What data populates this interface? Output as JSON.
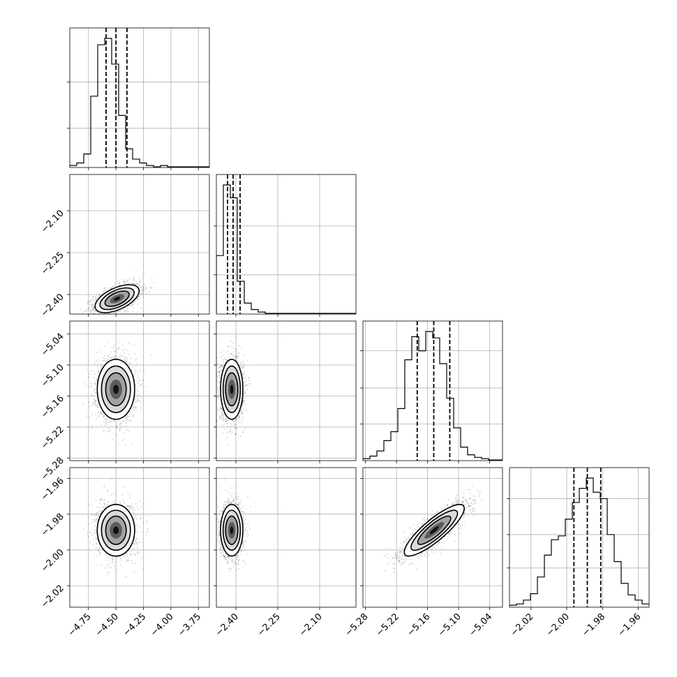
{
  "chart_data": {
    "type": "corner",
    "parameters": [
      {
        "range": [
          -4.92,
          -3.65
        ],
        "ticks": [
          -4.75,
          -4.5,
          -4.25,
          -4.0,
          -3.75
        ],
        "tick_labels": [
          "−4.75",
          "−4.50",
          "−4.25",
          "−4.00",
          "−3.75"
        ],
        "quantiles": [
          -4.59,
          -4.5,
          -4.4
        ],
        "hist": [
          1,
          3,
          10,
          55,
          95,
          100,
          80,
          40,
          14,
          6,
          3,
          1,
          0,
          1,
          0,
          0,
          0,
          0,
          0,
          0
        ],
        "hist_ticks": [
          30,
          66
        ]
      },
      {
        "range": [
          -2.47,
          -1.97
        ],
        "ticks": [
          -2.4,
          -2.25,
          -2.1
        ],
        "tick_labels": [
          "−2.40",
          "−2.25",
          "−2.10"
        ],
        "quantiles": [
          -2.43,
          -2.41,
          -2.385
        ],
        "hist": [
          45,
          100,
          90,
          25,
          8,
          3,
          1,
          0,
          0,
          0,
          0,
          0,
          0,
          0,
          0,
          0,
          0,
          0,
          0,
          0
        ],
        "hist_ticks": [
          30,
          68
        ]
      },
      {
        "range": [
          -5.285,
          -5.015
        ],
        "ticks": [
          -5.28,
          -5.22,
          -5.16,
          -5.1,
          -5.04
        ],
        "tick_labels": [
          "−5.28",
          "−5.22",
          "−5.16",
          "−5.10",
          "−5.04"
        ],
        "quantiles": [
          -5.18,
          -5.148,
          -5.117
        ],
        "hist": [
          1,
          3,
          7,
          15,
          22,
          40,
          78,
          96,
          85,
          100,
          95,
          75,
          48,
          25,
          10,
          4,
          2,
          1,
          0,
          0
        ],
        "hist_ticks": [
          28,
          56,
          85
        ]
      },
      {
        "range": [
          -2.032,
          -1.954
        ],
        "ticks": [
          -2.02,
          -2.0,
          -1.98,
          -1.96
        ],
        "tick_labels": [
          "−2.02",
          "−2.00",
          "−1.98",
          "−1.96"
        ],
        "quantiles": [
          -1.996,
          -1.9885,
          -1.981
        ],
        "hist": [
          1,
          2,
          5,
          10,
          23,
          40,
          52,
          55,
          68,
          81,
          92,
          100,
          89,
          84,
          56,
          35,
          18,
          9,
          5,
          2
        ],
        "hist_ticks": [
          30,
          56,
          84
        ]
      }
    ],
    "pairs": [
      {
        "row": 1,
        "col": 0,
        "center": [
          -4.49,
          -2.415
        ],
        "sigma": [
          0.1,
          0.025
        ],
        "rho": 0.55
      },
      {
        "row": 2,
        "col": 0,
        "center": [
          -4.5,
          -5.147
        ],
        "sigma": [
          0.085,
          0.029
        ],
        "rho": 0.0
      },
      {
        "row": 2,
        "col": 1,
        "center": [
          -2.415,
          -5.147
        ],
        "sigma": [
          0.02,
          0.029
        ],
        "rho": 0.0
      },
      {
        "row": 3,
        "col": 0,
        "center": [
          -4.5,
          -1.989
        ],
        "sigma": [
          0.085,
          0.0072
        ],
        "rho": 0.0
      },
      {
        "row": 3,
        "col": 1,
        "center": [
          -2.415,
          -1.989
        ],
        "sigma": [
          0.02,
          0.0072
        ],
        "rho": 0.0
      },
      {
        "row": 3,
        "col": 2,
        "center": [
          -5.147,
          -1.989
        ],
        "sigma": [
          0.029,
          0.0072
        ],
        "rho": 0.85
      }
    ],
    "title": "",
    "grid": true,
    "show_titles": false
  }
}
